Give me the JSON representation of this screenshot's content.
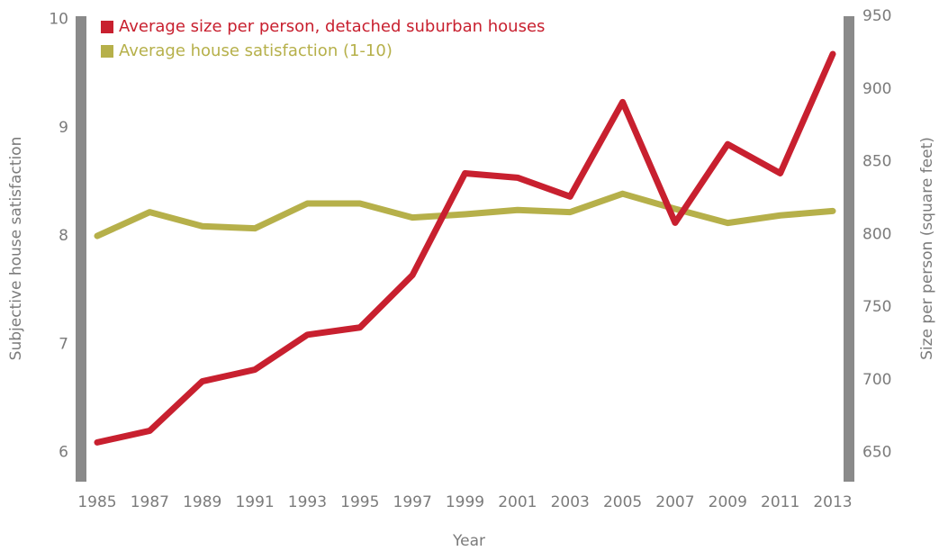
{
  "chart_data": {
    "type": "line",
    "x": [
      1985,
      1987,
      1989,
      1991,
      1993,
      1995,
      1997,
      1999,
      2001,
      2003,
      2005,
      2007,
      2009,
      2011,
      2013
    ],
    "xlim": [
      1985,
      2013
    ],
    "xticks": [
      1985,
      1987,
      1989,
      1991,
      1993,
      1995,
      1997,
      1999,
      2001,
      2003,
      2005,
      2007,
      2009,
      2011,
      2013
    ],
    "xlabel": "Year",
    "ylabel": "Subjective house satisfaction",
    "y2label": "Size per person (square feet)",
    "ylim": [
      5.73,
      10.03
    ],
    "yticks": [
      6,
      7,
      8,
      9,
      10
    ],
    "y2lim": [
      630,
      950
    ],
    "y2ticks": [
      650,
      700,
      750,
      800,
      850,
      900,
      950
    ],
    "legend": "upper left",
    "series": [
      {
        "name": "Average size per person, detached suburban houses",
        "color": "#c8202f",
        "axis": "y2",
        "values": [
          657,
          665,
          699,
          707,
          731,
          736,
          772,
          842,
          839,
          826,
          891,
          808,
          862,
          842,
          924
        ]
      },
      {
        "name": "Average house satisfaction (1-10)",
        "color": "#b6b04a",
        "axis": "y",
        "values": [
          8.0,
          8.22,
          8.09,
          8.07,
          8.3,
          8.3,
          8.17,
          8.2,
          8.24,
          8.22,
          8.39,
          8.25,
          8.12,
          8.19,
          8.23
        ]
      }
    ]
  }
}
